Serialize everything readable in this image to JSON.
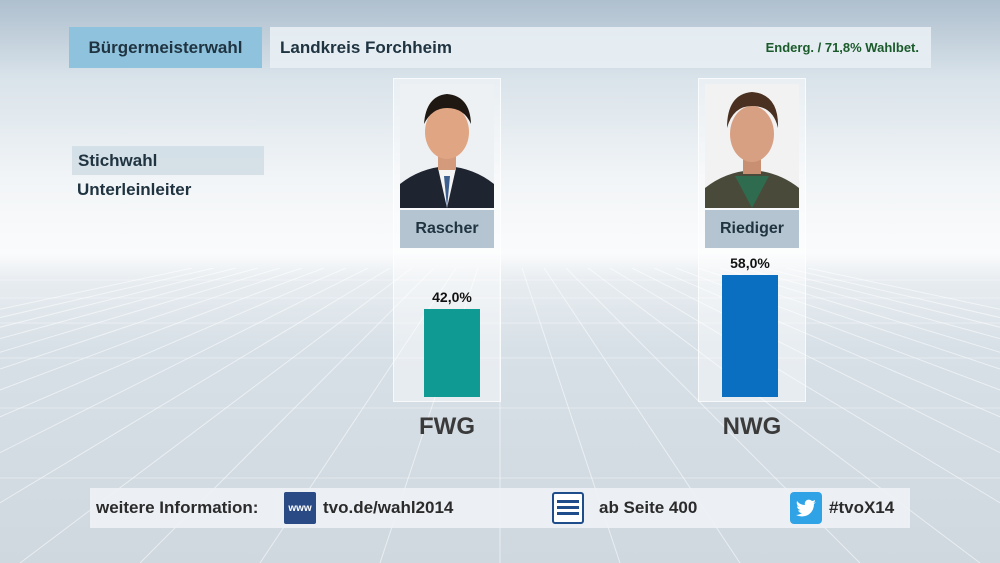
{
  "header": {
    "category": "Bürgermeisterwahl",
    "region": "Landkreis Forchheim",
    "status": "Enderg. / 71,8% Wahlbet."
  },
  "sidebar": {
    "round": "Stichwahl",
    "municipality": "Unterleinleiter"
  },
  "chart_data": {
    "type": "bar",
    "categories": [
      "FWG",
      "NWG"
    ],
    "candidates": [
      "Rascher",
      "Riediger"
    ],
    "values": [
      42.0,
      58.0
    ],
    "value_labels": [
      "42,0%",
      "58,0%"
    ],
    "colors": [
      "#0f9a93",
      "#0a6fc0"
    ],
    "ylim": [
      0,
      60
    ]
  },
  "footer": {
    "intro": "weitere Information:",
    "web_icon_text": "www",
    "web": "tvo.de/wahl2014",
    "teletext": "ab Seite 400",
    "twitter": "#tvoX14",
    "icons": [
      "www-icon",
      "teletext-icon",
      "twitter-icon"
    ]
  }
}
